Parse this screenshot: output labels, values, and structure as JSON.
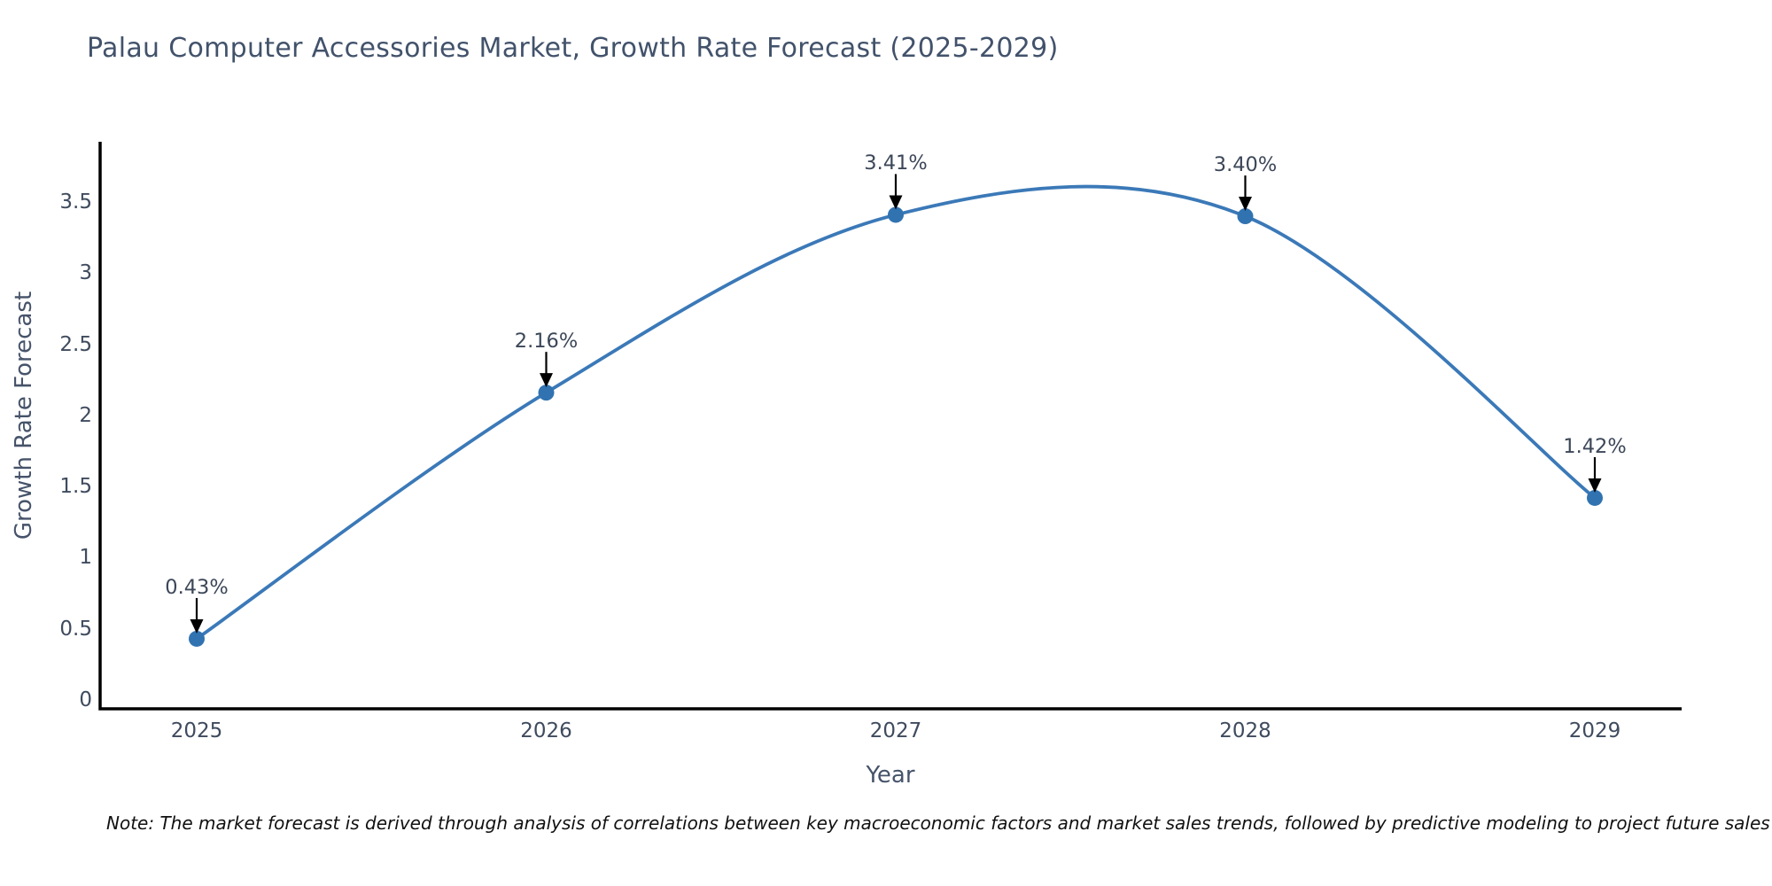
{
  "page": {
    "background": "#ffffff"
  },
  "chart_data": {
    "type": "line",
    "title": "Palau Computer Accessories Market, Growth Rate Forecast (2025-2029)",
    "xlabel": "Year",
    "ylabel": "Growth Rate Forecast",
    "categories": [
      "2025",
      "2026",
      "2027",
      "2028",
      "2029"
    ],
    "series": [
      {
        "name": "Growth Rate Forecast",
        "values": [
          0.43,
          2.16,
          3.41,
          3.4,
          1.42
        ],
        "point_labels": [
          "0.43%",
          "2.16%",
          "3.41%",
          "3.40%",
          "1.42%"
        ]
      }
    ],
    "y_ticks": [
      "0",
      "0.5",
      "1",
      "1.5",
      "2",
      "2.5",
      "3",
      "3.5"
    ],
    "y_tick_values": [
      0,
      0.5,
      1,
      1.5,
      2,
      2.5,
      3,
      3.5
    ],
    "ylim": [
      -0.06,
      3.92
    ],
    "line_shape": "spline",
    "grid": false,
    "legend_position": "none",
    "colors": {
      "line": "#3b79b8",
      "marker": "#3173b1",
      "axis_line": "#000000",
      "title_text": "#42526b",
      "tick_text": "#3f4b5e",
      "annotation_text": "#3c4758",
      "arrow": "#000000"
    },
    "note": "Note: The market forecast is derived through analysis of correlations between key macroeconomic factors and market sales trends, followed by predictive modeling to project future sales"
  }
}
